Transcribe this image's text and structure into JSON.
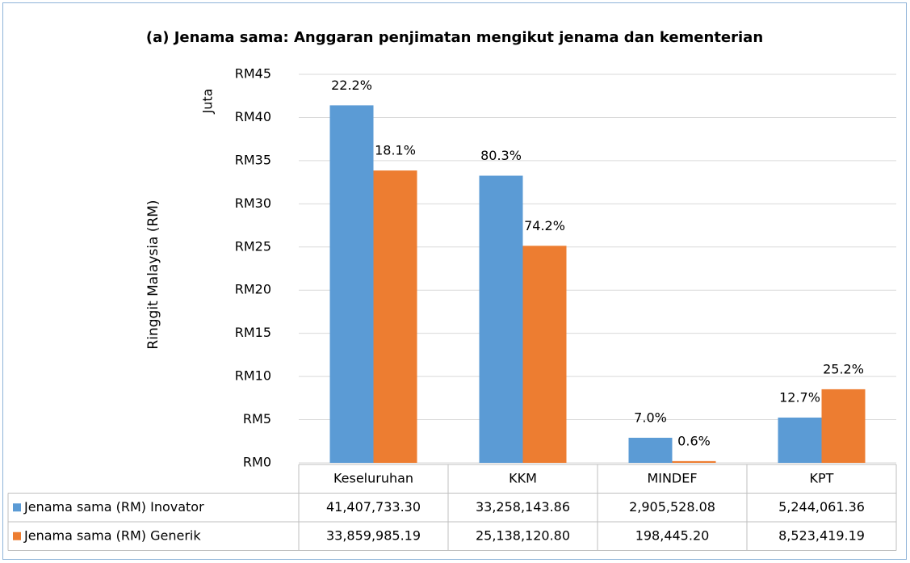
{
  "chart_data": {
    "type": "bar",
    "title": "(a) Jenama sama: Anggaran penjimatan mengikut jenama dan kementerian",
    "y_axis_label": "Ringgit Malaysia (RM)",
    "y_axis_unit": "Juta",
    "categories": [
      "Keseluruhan",
      "KKM",
      "MINDEF",
      "KPT"
    ],
    "series": [
      {
        "name": "Jenama sama (RM) Inovator",
        "color": "#5b9bd5",
        "values": [
          41.4077333,
          33.25814386,
          2.90552808,
          5.24406136
        ],
        "value_labels": [
          "41,407,733.30",
          "33,258,143.86",
          "2,905,528.08",
          "5,244,061.36"
        ],
        "percentages": [
          22.2,
          80.3,
          7.0,
          12.7
        ],
        "percentage_labels": [
          "22.2%",
          "80.3%",
          "7.0%",
          "12.7%"
        ]
      },
      {
        "name": "Jenama sama (RM) Generik",
        "color": "#ed7d31",
        "values": [
          33.85998519,
          25.1381208,
          0.1984452,
          8.52341919
        ],
        "value_labels": [
          "33,859,985.19",
          "25,138,120.80",
          "198,445.20",
          "8,523,419.19"
        ],
        "percentages": [
          18.1,
          74.2,
          0.6,
          25.2
        ],
        "percentage_labels": [
          "18.1%",
          "74.2%",
          "0.6%",
          "25.2%"
        ]
      }
    ],
    "ylim": [
      0,
      45
    ],
    "yticks": [
      {
        "value": 0,
        "label": "RM0"
      },
      {
        "value": 5,
        "label": "RM5"
      },
      {
        "value": 10,
        "label": "RM10"
      },
      {
        "value": 15,
        "label": "RM15"
      },
      {
        "value": 20,
        "label": "RM20"
      },
      {
        "value": 25,
        "label": "RM25"
      },
      {
        "value": 30,
        "label": "RM30"
      },
      {
        "value": 35,
        "label": "RM35"
      },
      {
        "value": 40,
        "label": "RM40"
      },
      {
        "value": 45,
        "label": "RM45"
      }
    ],
    "grid": true
  }
}
